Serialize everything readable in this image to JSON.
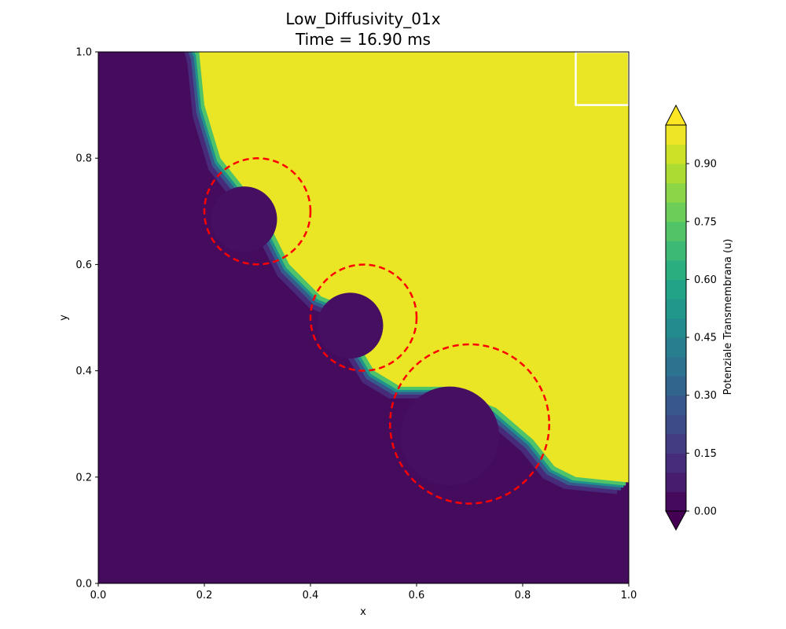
{
  "chart_data": {
    "type": "heatmap",
    "title": "Low_Diffusivity_01x",
    "subtitle": "Time = 16.90 ms",
    "xlabel": "x",
    "ylabel": "y",
    "xlim": [
      0.0,
      1.0
    ],
    "ylim": [
      0.0,
      1.0
    ],
    "x_ticks": [
      "0.0",
      "0.2",
      "0.4",
      "0.6",
      "0.8",
      "1.0"
    ],
    "y_ticks": [
      "0.0",
      "0.2",
      "0.4",
      "0.6",
      "0.8",
      "1.0"
    ],
    "colormap": "viridis",
    "colorbar": {
      "label": "Potenziale Transmembrana (u)",
      "range": [
        0.0,
        1.0
      ],
      "levels": 20,
      "extend": "both",
      "ticks": [
        "0.00",
        "0.15",
        "0.30",
        "0.45",
        "0.60",
        "0.75",
        "0.90"
      ]
    },
    "excited_value": 0.97,
    "resting_value": 0.0,
    "obstacles": [
      {
        "cx": 0.3,
        "cy": 0.7,
        "r": 0.1
      },
      {
        "cx": 0.5,
        "cy": 0.5,
        "r": 0.1
      },
      {
        "cx": 0.7,
        "cy": 0.3,
        "r": 0.15
      }
    ],
    "obstacle_style": {
      "color": "#ff0000",
      "dash": "dashed"
    },
    "stimulus_region": {
      "x": [
        0.9,
        1.0
      ],
      "y": [
        0.9,
        1.0
      ],
      "color": "#ffffff"
    },
    "wavefront_boundary": [
      [
        0.19,
        1.0
      ],
      [
        0.2,
        0.9
      ],
      [
        0.23,
        0.8
      ],
      [
        0.27,
        0.75
      ],
      [
        0.32,
        0.68
      ],
      [
        0.36,
        0.6
      ],
      [
        0.42,
        0.54
      ],
      [
        0.47,
        0.52
      ],
      [
        0.49,
        0.45
      ],
      [
        0.52,
        0.4
      ],
      [
        0.57,
        0.37
      ],
      [
        0.65,
        0.37
      ],
      [
        0.75,
        0.33
      ],
      [
        0.82,
        0.27
      ],
      [
        0.86,
        0.22
      ],
      [
        0.9,
        0.2
      ],
      [
        1.0,
        0.19
      ]
    ]
  }
}
